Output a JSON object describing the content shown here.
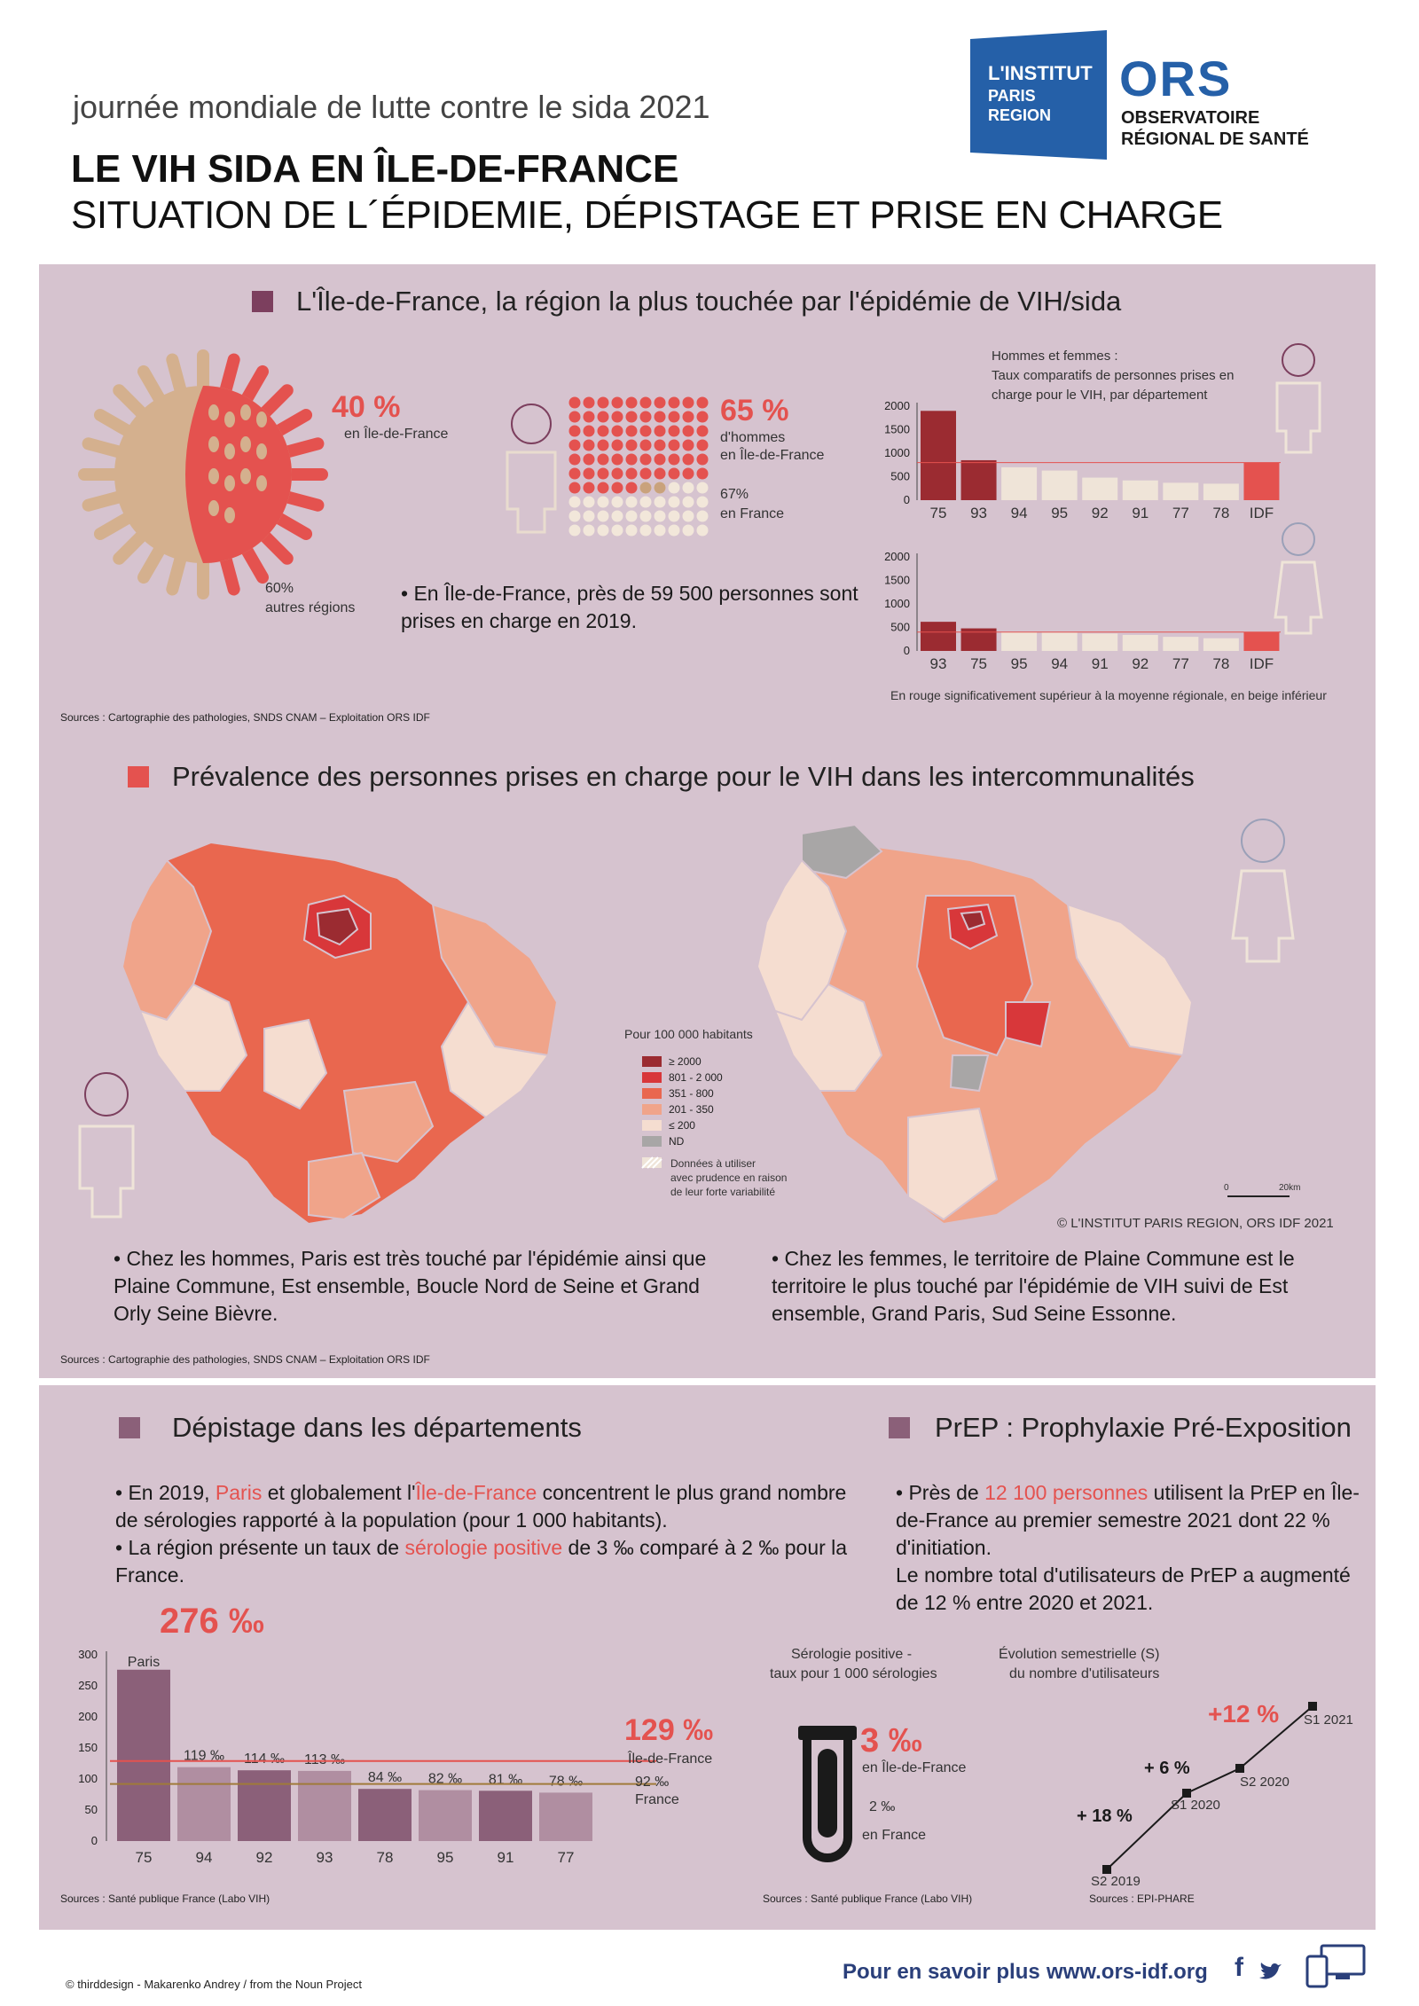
{
  "header": {
    "kicker": "journée mondiale de lutte contre le sida 2021",
    "title": "LE VIH SIDA EN ÎLE-DE-FRANCE",
    "subtitle": "SITUATION DE L´ÉPIDEMIE, DÉPISTAGE ET PRISE EN CHARGE",
    "logo_institut": [
      "L'INSTITUT",
      "PARIS",
      "REGION"
    ],
    "logo_ors": "ORS",
    "logo_ors_sub": [
      "OBSERVATOIRE",
      "RÉGIONAL DE SANTÉ"
    ]
  },
  "colors": {
    "panel_bg": "#d6c3cf",
    "accent_red": "#e4524f",
    "dark_red": "#9b2b31",
    "beige": "#efe4d8",
    "purple": "#8b6079",
    "light_purple": "#b08ea1",
    "virus_tan": "#d4b08e",
    "blue_logo": "#2560a8"
  },
  "section1": {
    "title": "L'Île-de-France, la région la plus touchée par l'épidémie de VIH/sida",
    "idf_share_value": "40 %",
    "idf_share_label": "en Île-de-France",
    "other_share_value": "60%",
    "other_share_label": "autres régions",
    "men_value": "65 %",
    "men_label_1": "d'hommes",
    "men_label_2": "en Île-de-France",
    "france_value": "67%",
    "france_label": "en France",
    "bullet": "• En Île-de-France, près de 59 500 personnes sont prises en charge en 2019.",
    "chart_title": [
      "Hommes et femmes :",
      "Taux comparatifs de personnes prises en",
      "charge pour le VIH, par département"
    ],
    "chart_note": "En rouge significativement supérieur à la moyenne régionale, en beige inférieur",
    "source": "Sources  : Cartographie des pathologies, SNDS CNAM – Exploitation ORS IDF"
  },
  "section2": {
    "title": "Prévalence des personnes prises en charge pour le VIH dans les intercommunalités",
    "legend_title": "Pour 100 000 habitants",
    "legend": [
      {
        "label": "≥ 2000",
        "color": "#9b2b31"
      },
      {
        "label": "801 - 2 000",
        "color": "#d8373a"
      },
      {
        "label": "351 - 800",
        "color": "#e9674f"
      },
      {
        "label": "201 - 350",
        "color": "#f0a48a"
      },
      {
        "label": "≤ 200",
        "color": "#f5ddd0"
      },
      {
        "label": "ND",
        "color": "#a8a6a6"
      }
    ],
    "legend_hatch": [
      "Données à utiliser",
      "avec prudence en raison",
      "de leur forte variabilité"
    ],
    "scale_0": "0",
    "scale_20": "20km",
    "copyright": "© L'INSTITUT PARIS REGION, ORS IDF 2021",
    "bullet_men": "• Chez les hommes, Paris est très touché par l'épidémie ainsi que Plaine Commune, Est ensemble, Boucle Nord de Seine et Grand Orly Seine Bièvre.",
    "bullet_women": "• Chez les femmes, le territoire de Plaine Commune est le territoire le plus touché par l'épidémie de VIH suivi de Est ensemble, Grand Paris, Sud Seine Essonne.",
    "source": "Sources  : Cartographie des pathologies, SNDS CNAM – Exploitation ORS IDF"
  },
  "section3": {
    "title_depistage": "Dépistage dans les départements",
    "title_prep": "PrEP : Prophylaxie Pré-Exposition",
    "dep_text": {
      "p1a": "• En 2019, ",
      "p1b": "Paris",
      "p1c": " et globalement l'",
      "p1d": "Île-de-France",
      "p1e": " concentrent le plus grand nombre de sérologies rapporté à la population (pour 1 000 habitants).",
      "p2a": "• La région présente un taux de ",
      "p2b": "sérologie positive",
      "p2c": " de 3 ‰ comparé à 2 ‰ pour la France."
    },
    "prep_text": {
      "p1a": "• Près de ",
      "p1b": "12 100 personnes",
      "p1c": " utilisent la PrEP en Île-de-France au premier semestre 2021 dont 22 % d'initiation.",
      "p2": "Le nombre total d'utilisateurs de PrEP  a augmenté de 12 % entre 2020 et 2021."
    },
    "paris_big": "276 ‰",
    "paris_label": "Paris",
    "idf_ref_value": "129 ‰",
    "idf_ref_label": "Île-de-France",
    "fr_ref_value": "92 ‰",
    "fr_ref_label": "France",
    "sero_title": [
      "Sérologie positive -",
      "taux pour 1 000 sérologies"
    ],
    "sero_idf_value": "3 ‰",
    "sero_idf_label": "en Île-de-France",
    "sero_fr_value": "2  ‰",
    "sero_fr_label": "en France",
    "evol_title": [
      "Évolution semestrielle (S)",
      "du nombre d'utilisateurs"
    ],
    "source_left": "Sources  : Santé publique France (Labo VIH)",
    "source_mid": "Sources  : Santé publique France (Labo VIH)",
    "source_right": "Sources  : EPI-PHARE"
  },
  "footer": {
    "credit": "© thirddesign - Makarenko Andrey /  from the Noun Project",
    "more_label": "Pour en savoir plus",
    "url": "www.ors-idf.org",
    "fb": "f"
  },
  "chart_data": [
    {
      "type": "bar",
      "title": "",
      "categories": [
        "75",
        "93",
        "94",
        "95",
        "92",
        "91",
        "77",
        "78",
        "IDF"
      ],
      "values": [
        1900,
        850,
        700,
        630,
        480,
        420,
        370,
        350,
        800
      ],
      "ylim": [
        0,
        2000
      ],
      "yticks": [
        0,
        500,
        1000,
        1500,
        2000
      ],
      "bar_colors": [
        "#9b2b31",
        "#9b2b31",
        "#efe4d8",
        "#efe4d8",
        "#efe4d8",
        "#efe4d8",
        "#efe4d8",
        "#efe4d8",
        "#e4524f"
      ],
      "reference": 800
    },
    {
      "type": "bar",
      "title": "",
      "categories": [
        "93",
        "75",
        "95",
        "94",
        "91",
        "92",
        "77",
        "78",
        "IDF"
      ],
      "values": [
        620,
        480,
        400,
        390,
        370,
        340,
        300,
        270,
        400
      ],
      "ylim": [
        0,
        2000
      ],
      "yticks": [
        0,
        500,
        1000,
        1500,
        2000
      ],
      "bar_colors": [
        "#9b2b31",
        "#9b2b31",
        "#efe4d8",
        "#efe4d8",
        "#efe4d8",
        "#efe4d8",
        "#efe4d8",
        "#efe4d8",
        "#e4524f"
      ],
      "reference": 400
    },
    {
      "type": "bar",
      "title": "",
      "categories": [
        "75",
        "94",
        "92",
        "93",
        "78",
        "95",
        "91",
        "77"
      ],
      "values": [
        276,
        119,
        114,
        113,
        84,
        82,
        81,
        78
      ],
      "labels": [
        "",
        "119 ‰",
        "114 ‰",
        "113 ‰",
        "84 ‰",
        "82 ‰",
        "81 ‰",
        "78 ‰"
      ],
      "ylim": [
        0,
        300
      ],
      "yticks": [
        0,
        50,
        100,
        150,
        200,
        250,
        300
      ],
      "bar_colors": [
        "#8b6079",
        "#b08ea1",
        "#8b6079",
        "#b08ea1",
        "#8b6079",
        "#b08ea1",
        "#8b6079",
        "#b08ea1"
      ],
      "references": [
        {
          "name": "Île-de-France",
          "value": 129
        },
        {
          "name": "France",
          "value": 92
        }
      ]
    },
    {
      "type": "line",
      "title": "",
      "x": [
        "S2 2019",
        "S1 2020",
        "S2 2020",
        "S1 2021"
      ],
      "y_relative": [
        0,
        18,
        24,
        31
      ],
      "annotations": [
        "+ 18 %",
        "+ 6 %",
        "+12 %"
      ]
    }
  ]
}
